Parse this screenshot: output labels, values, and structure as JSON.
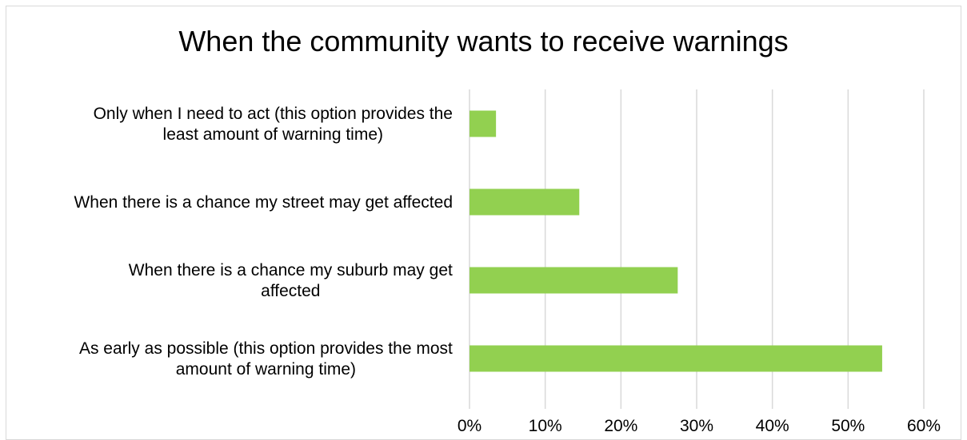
{
  "chart_data": {
    "type": "bar",
    "orientation": "horizontal",
    "title": "When the community wants to receive warnings",
    "categories": [
      [
        "Only when I need to act (this option provides the",
        "least amount of warning time)"
      ],
      [
        "When there is a chance my street may get affected"
      ],
      [
        "When there is a chance my suburb may get",
        "affected"
      ],
      [
        "As early as possible (this option provides the most",
        "amount of warning time)"
      ]
    ],
    "values": [
      3.5,
      14.5,
      27.5,
      54.5
    ],
    "xlim": [
      0,
      60
    ],
    "xticks": [
      "0%",
      "10%",
      "20%",
      "30%",
      "40%",
      "50%",
      "60%"
    ],
    "xtick_values": [
      0,
      10,
      20,
      30,
      40,
      50,
      60
    ],
    "grid": true,
    "legend": "none",
    "bar_color": "#92d050",
    "grid_color": "#d9d9d9"
  }
}
